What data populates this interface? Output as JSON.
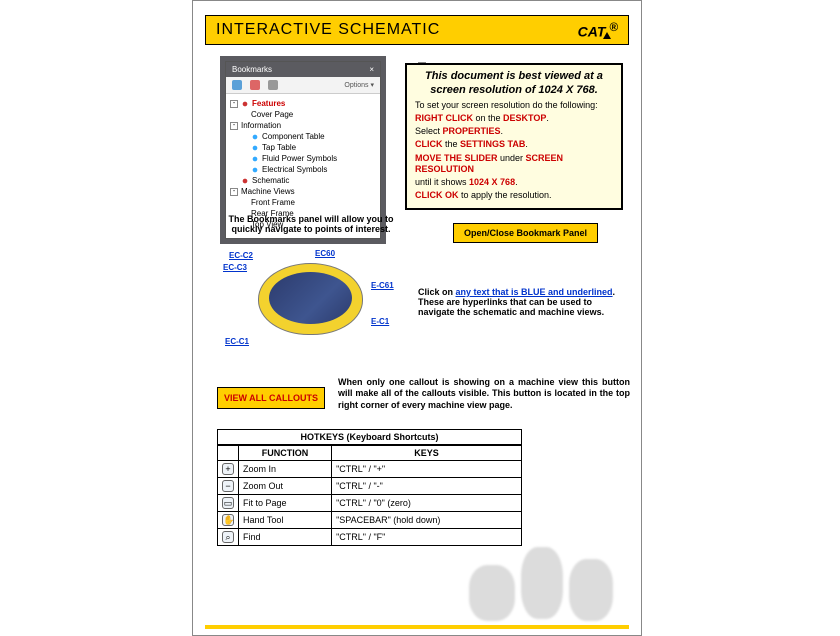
{
  "header": {
    "title": "INTERACTIVE SCHEMATIC",
    "logo": "CAT",
    "logo_reg": "®"
  },
  "bookmarks": {
    "panel_title": "Bookmarks",
    "options_label": "Options",
    "items": [
      {
        "exp": "-",
        "icon": "red",
        "label": "Features",
        "lvl": 0,
        "red": true
      },
      {
        "exp": "",
        "icon": "page",
        "label": "Cover Page",
        "lvl": 1
      },
      {
        "exp": "-",
        "icon": "page",
        "label": "Information",
        "lvl": 0
      },
      {
        "exp": "",
        "icon": "blue",
        "label": "Component Table",
        "lvl": 1
      },
      {
        "exp": "",
        "icon": "blue",
        "label": "Tap Table",
        "lvl": 1
      },
      {
        "exp": "",
        "icon": "blue",
        "label": "Fluid Power Symbols",
        "lvl": 1
      },
      {
        "exp": "",
        "icon": "blue",
        "label": "Electrical Symbols",
        "lvl": 1
      },
      {
        "exp": "",
        "icon": "red",
        "label": "Schematic",
        "lvl": 0
      },
      {
        "exp": "-",
        "icon": "page",
        "label": "Machine Views",
        "lvl": 0
      },
      {
        "exp": "",
        "icon": "page",
        "label": "Front Frame",
        "lvl": 1
      },
      {
        "exp": "",
        "icon": "page",
        "label": "Rear Frame",
        "lvl": 1
      },
      {
        "exp": "",
        "icon": "page",
        "label": "Top View",
        "lvl": 1
      }
    ],
    "caption": "The Bookmarks panel will allow you to quickly navigate to points of interest."
  },
  "info_box": {
    "title": "This document is best viewed at a screen resolution of 1024 X 768.",
    "line1_pre": "To set your screen resolution do the following:",
    "l2a": "RIGHT CLICK",
    "l2b": " on the ",
    "l2c": "DESKTOP",
    "l3a": "Select ",
    "l3b": "PROPERTIES",
    "l4a": "CLICK",
    "l4b": " the ",
    "l4c": "SETTINGS TAB",
    "l5a": "MOVE THE SLIDER",
    "l5b": " under ",
    "l5c": "SCREEN RESOLUTION",
    "l6a": "until it shows ",
    "l6b": "1024 X 768",
    "l7a": "CLICK OK",
    "l7b": " to apply the resolution."
  },
  "open_close_btn": "Open/Close Bookmark Panel",
  "schematic_labels": {
    "tl1": "EC-C2",
    "tl2": "EC-C3",
    "tr": "EC60",
    "mr": "E-C61",
    "br": "E-C1",
    "bl": "EC-C1"
  },
  "link_text": {
    "a": "Click on ",
    "b": "any text that is BLUE and underlined",
    "c": ". These are hyperlinks that can be used to navigate the schematic and machine views."
  },
  "view_btn": "VIEW ALL CALLOUTS",
  "view_text": "When only one callout is showing on a machine view this button will make all of the callouts visible. This button is located in the top right corner of every machine view page.",
  "hotkeys": {
    "title": "HOTKEYS (Keyboard Shortcuts)",
    "col_func": "FUNCTION",
    "col_keys": "KEYS",
    "rows": [
      {
        "ico": "+",
        "func": "Zoom In",
        "keys": "\"CTRL\" / \"+\""
      },
      {
        "ico": "−",
        "func": "Zoom Out",
        "keys": "\"CTRL\" / \"-\""
      },
      {
        "ico": "▭",
        "func": "Fit to Page",
        "keys": "\"CTRL\" / \"0\" (zero)"
      },
      {
        "ico": "✋",
        "func": "Hand Tool",
        "keys": "\"SPACEBAR\" (hold down)"
      },
      {
        "ico": "⌕",
        "func": "Find",
        "keys": "\"CTRL\" / \"F\""
      }
    ]
  },
  "colors": {
    "brand_yellow": "#ffce00",
    "info_bg": "#fffde0",
    "accent_red": "#c00",
    "link_blue": "#0033cc"
  }
}
